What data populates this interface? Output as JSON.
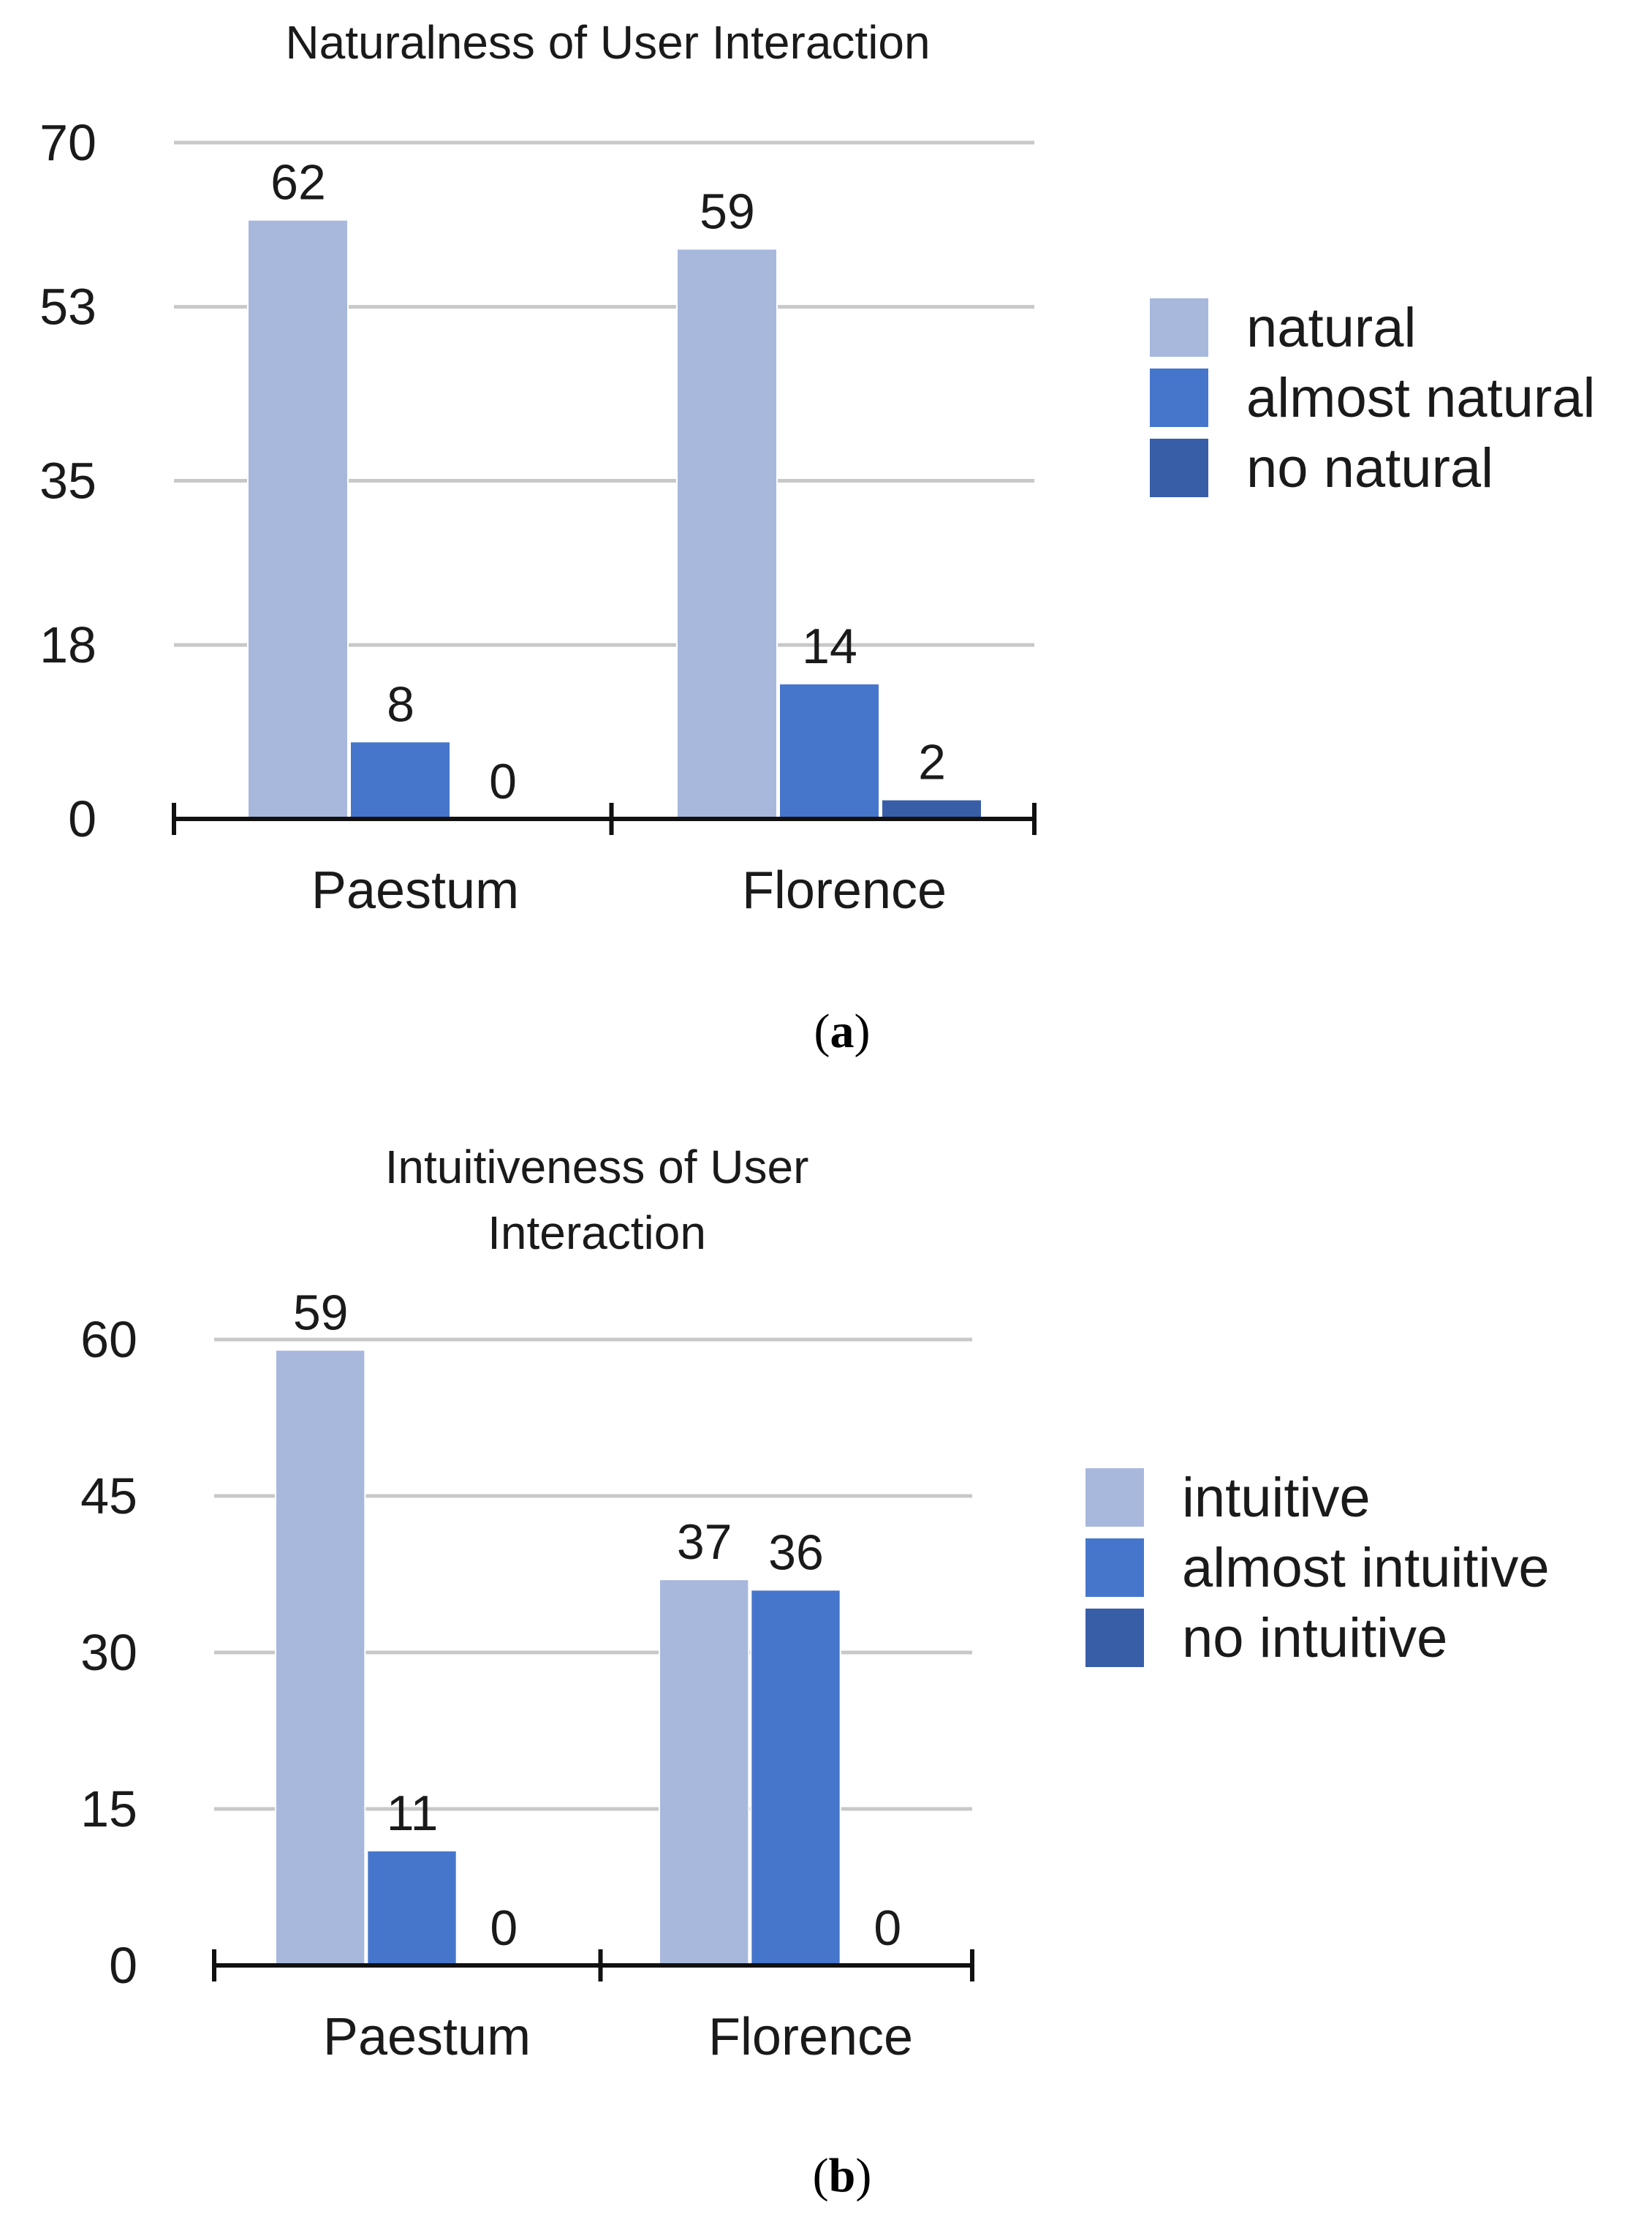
{
  "chart_data": [
    {
      "type": "bar",
      "title": "Naturalness of User Interaction",
      "caption_label": "a",
      "categories": [
        "Paestum",
        "Florence"
      ],
      "series": [
        {
          "name": "natural",
          "values": [
            62,
            59
          ],
          "color": "#a8b8dd"
        },
        {
          "name": "almost natural",
          "values": [
            8,
            14
          ],
          "color": "#4676cb"
        },
        {
          "name": "no natural",
          "values": [
            0,
            2
          ],
          "color": "#385ea8"
        }
      ],
      "yticks": [
        0,
        18,
        35,
        53,
        70
      ],
      "ylim": [
        0,
        70
      ],
      "grid": true,
      "legend": "right"
    },
    {
      "type": "bar",
      "title": [
        "Intuitiveness of User",
        "Interaction"
      ],
      "caption_label": "b",
      "categories": [
        "Paestum",
        "Florence"
      ],
      "series": [
        {
          "name": "intuitive",
          "values": [
            59,
            37
          ],
          "color": "#a8b8dd"
        },
        {
          "name": "almost intuitive",
          "values": [
            11,
            36
          ],
          "color": "#4676cb"
        },
        {
          "name": "no intuitive",
          "values": [
            0,
            0
          ],
          "color": "#385ea8"
        }
      ],
      "yticks": [
        0,
        15,
        30,
        45,
        60
      ],
      "ylim": [
        0,
        60
      ],
      "grid": true,
      "legend": "right"
    }
  ]
}
